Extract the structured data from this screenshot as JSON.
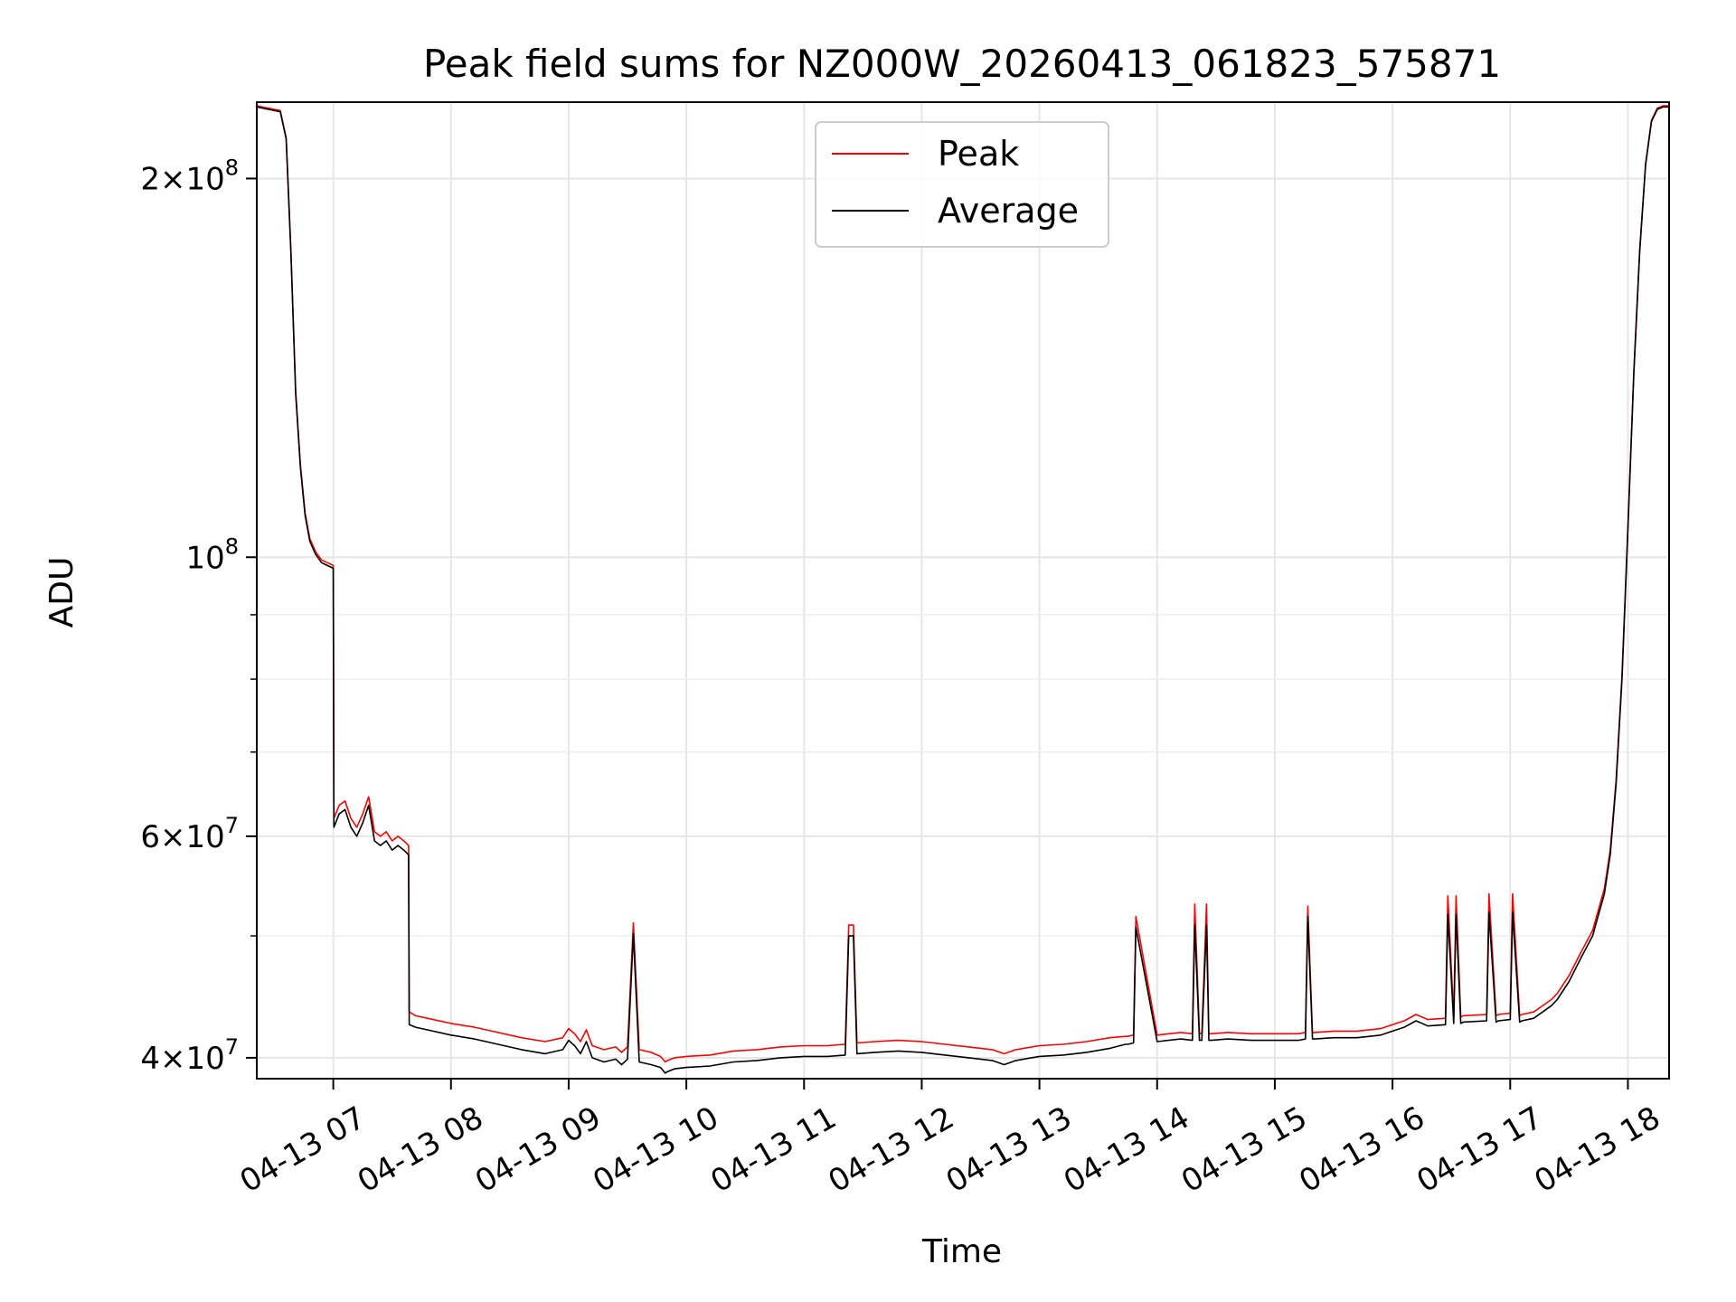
{
  "chart_data": {
    "type": "line",
    "title": "Peak field sums for NZ000W_20260413_061823_575871",
    "xlabel": "Time",
    "ylabel": "ADU",
    "yscale": "log",
    "ylim": [
      38500000,
      230000000
    ],
    "xlim": [
      6.35,
      18.35
    ],
    "x_tick_values": [
      7,
      8,
      9,
      10,
      11,
      12,
      13,
      14,
      15,
      16,
      17,
      18
    ],
    "x_tick_labels": [
      "04-13 07",
      "04-13 08",
      "04-13 09",
      "04-13 10",
      "04-13 11",
      "04-13 12",
      "04-13 13",
      "04-13 14",
      "04-13 15",
      "04-13 16",
      "04-13 17",
      "04-13 18"
    ],
    "y_tick_values": [
      40000000,
      60000000,
      100000000,
      200000000
    ],
    "y_tick_labels": [
      {
        "mantissa": "4×10",
        "exp": "7"
      },
      {
        "mantissa": "6×10",
        "exp": "7"
      },
      {
        "mantissa": "10",
        "exp": "8"
      },
      {
        "mantissa": "2×10",
        "exp": "8"
      }
    ],
    "y_minor_tick_values": [
      50000000,
      70000000,
      80000000,
      90000000
    ],
    "grid": true,
    "legend": {
      "placement": "top-center",
      "entries": [
        "Peak",
        "Average"
      ]
    },
    "series": [
      {
        "name": "Average",
        "color": "#000000",
        "x": [
          6.35,
          6.55,
          6.6,
          6.64,
          6.68,
          6.72,
          6.76,
          6.8,
          6.85,
          6.9,
          6.95,
          7.0,
          7.005,
          7.05,
          7.1,
          7.15,
          7.2,
          7.25,
          7.3,
          7.35,
          7.4,
          7.45,
          7.5,
          7.55,
          7.6,
          7.64,
          7.645,
          7.7,
          7.8,
          8.0,
          8.2,
          8.4,
          8.6,
          8.8,
          8.95,
          9.0,
          9.05,
          9.1,
          9.15,
          9.2,
          9.3,
          9.4,
          9.45,
          9.5,
          9.55,
          9.6,
          9.65,
          9.7,
          9.78,
          9.8,
          9.82,
          9.84,
          9.9,
          10.0,
          10.2,
          10.4,
          10.6,
          10.8,
          11.0,
          11.2,
          11.35,
          11.38,
          11.42,
          11.45,
          11.6,
          11.8,
          12.0,
          12.2,
          12.4,
          12.6,
          12.7,
          12.8,
          13.0,
          13.2,
          13.4,
          13.6,
          13.73,
          13.75,
          13.8,
          13.82,
          14.0,
          14.2,
          14.3,
          14.32,
          14.36,
          14.38,
          14.42,
          14.44,
          14.46,
          14.6,
          14.8,
          15.0,
          15.2,
          15.26,
          15.28,
          15.32,
          15.34,
          15.5,
          15.7,
          15.9,
          16.0,
          16.1,
          16.2,
          16.3,
          16.45,
          16.47,
          16.52,
          16.54,
          16.58,
          16.6,
          16.8,
          16.82,
          16.88,
          16.9,
          17.0,
          17.02,
          17.08,
          17.1,
          17.2,
          17.35,
          17.4,
          17.5,
          17.6,
          17.7,
          17.8,
          17.85,
          17.9,
          17.95,
          18.0,
          18.05,
          18.1,
          18.15,
          18.2,
          18.25,
          18.3,
          18.35
        ],
        "values": [
          228000000,
          226000000,
          215000000,
          175000000,
          135000000,
          118000000,
          108000000,
          103000000,
          100500000,
          99000000,
          98500000,
          98000000,
          61000000,
          62500000,
          63000000,
          61000000,
          60000000,
          61500000,
          63500000,
          59500000,
          59000000,
          59500000,
          58500000,
          59000000,
          58500000,
          58000000,
          42500000,
          42300000,
          42100000,
          41700000,
          41400000,
          41000000,
          40600000,
          40300000,
          40600000,
          41300000,
          40900000,
          40300000,
          41200000,
          40000000,
          39700000,
          39900000,
          39500000,
          39900000,
          50200000,
          39700000,
          39600000,
          39500000,
          39300000,
          39100000,
          38900000,
          39000000,
          39200000,
          39300000,
          39400000,
          39700000,
          39800000,
          40000000,
          40100000,
          40100000,
          40200000,
          50000000,
          50000000,
          40300000,
          40400000,
          40500000,
          40400000,
          40200000,
          40000000,
          39800000,
          39500000,
          39800000,
          40100000,
          40200000,
          40400000,
          40700000,
          41000000,
          41000000,
          41100000,
          50800000,
          41200000,
          41400000,
          41300000,
          51000000,
          41300000,
          41300000,
          51000000,
          41300000,
          41300000,
          41400000,
          41300000,
          41300000,
          41300000,
          41400000,
          51800000,
          41400000,
          41400000,
          41500000,
          41500000,
          41700000,
          42000000,
          42300000,
          42800000,
          42400000,
          42500000,
          52000000,
          42600000,
          52000000,
          42600000,
          42700000,
          42800000,
          52200000,
          42700000,
          42800000,
          42900000,
          52200000,
          42700000,
          42800000,
          43000000,
          44000000,
          44500000,
          46000000,
          48000000,
          50000000,
          54000000,
          58000000,
          66000000,
          80000000,
          105000000,
          140000000,
          175000000,
          205000000,
          222000000,
          227000000,
          228000000,
          228000000
        ]
      },
      {
        "name": "Peak",
        "color": "#ff0000",
        "x": [
          6.35,
          6.55,
          6.6,
          6.64,
          6.68,
          6.72,
          6.76,
          6.8,
          6.85,
          6.9,
          6.95,
          7.0,
          7.005,
          7.05,
          7.1,
          7.15,
          7.2,
          7.25,
          7.3,
          7.35,
          7.4,
          7.45,
          7.5,
          7.55,
          7.6,
          7.64,
          7.645,
          7.7,
          7.8,
          8.0,
          8.2,
          8.4,
          8.6,
          8.8,
          8.95,
          9.0,
          9.05,
          9.1,
          9.15,
          9.2,
          9.3,
          9.4,
          9.45,
          9.5,
          9.55,
          9.6,
          9.65,
          9.7,
          9.78,
          9.8,
          9.82,
          9.84,
          9.9,
          10.0,
          10.2,
          10.4,
          10.6,
          10.8,
          11.0,
          11.2,
          11.35,
          11.38,
          11.42,
          11.45,
          11.6,
          11.8,
          12.0,
          12.2,
          12.4,
          12.6,
          12.7,
          12.8,
          13.0,
          13.2,
          13.4,
          13.6,
          13.73,
          13.75,
          13.8,
          13.82,
          14.0,
          14.2,
          14.3,
          14.32,
          14.36,
          14.38,
          14.42,
          14.44,
          14.46,
          14.6,
          14.8,
          15.0,
          15.2,
          15.26,
          15.28,
          15.32,
          15.34,
          15.5,
          15.7,
          15.9,
          16.0,
          16.1,
          16.2,
          16.3,
          16.45,
          16.47,
          16.52,
          16.54,
          16.58,
          16.6,
          16.8,
          16.82,
          16.88,
          16.9,
          17.0,
          17.02,
          17.08,
          17.1,
          17.2,
          17.35,
          17.4,
          17.5,
          17.6,
          17.7,
          17.8,
          17.85,
          17.9,
          17.95,
          18.0,
          18.05,
          18.1,
          18.15,
          18.2,
          18.25,
          18.3,
          18.35
        ],
        "values": [
          228500000,
          226500000,
          215500000,
          175500000,
          135500000,
          118500000,
          108500000,
          103500000,
          101000000,
          99500000,
          99000000,
          98500000,
          62000000,
          63500000,
          64000000,
          62000000,
          61000000,
          62500000,
          64500000,
          60500000,
          60000000,
          60500000,
          59500000,
          60000000,
          59500000,
          59000000,
          43500000,
          43200000,
          43000000,
          42600000,
          42300000,
          41900000,
          41500000,
          41200000,
          41500000,
          42200000,
          41800000,
          41200000,
          42100000,
          40900000,
          40600000,
          40800000,
          40400000,
          40800000,
          51200000,
          40600000,
          40500000,
          40400000,
          40100000,
          39900000,
          39700000,
          39800000,
          40000000,
          40100000,
          40200000,
          40500000,
          40600000,
          40800000,
          40900000,
          40900000,
          41000000,
          51000000,
          51000000,
          41100000,
          41200000,
          41300000,
          41200000,
          41000000,
          40800000,
          40600000,
          40300000,
          40600000,
          40900000,
          41000000,
          41200000,
          41500000,
          41600000,
          41600000,
          41700000,
          51800000,
          41700000,
          41900000,
          41800000,
          53000000,
          41800000,
          41800000,
          53000000,
          41800000,
          41800000,
          41900000,
          41800000,
          41800000,
          41800000,
          41900000,
          52800000,
          41900000,
          41900000,
          42000000,
          42000000,
          42200000,
          42500000,
          42800000,
          43300000,
          42900000,
          43000000,
          53800000,
          43100000,
          53800000,
          43100000,
          43200000,
          43300000,
          54000000,
          43200000,
          43300000,
          43400000,
          54000000,
          43200000,
          43300000,
          43500000,
          44500000,
          45000000,
          46500000,
          48500000,
          50500000,
          54500000,
          58500000,
          66500000,
          80500000,
          105500000,
          140500000,
          175500000,
          205500000,
          222500000,
          227500000,
          228500000,
          228500000
        ]
      }
    ]
  }
}
